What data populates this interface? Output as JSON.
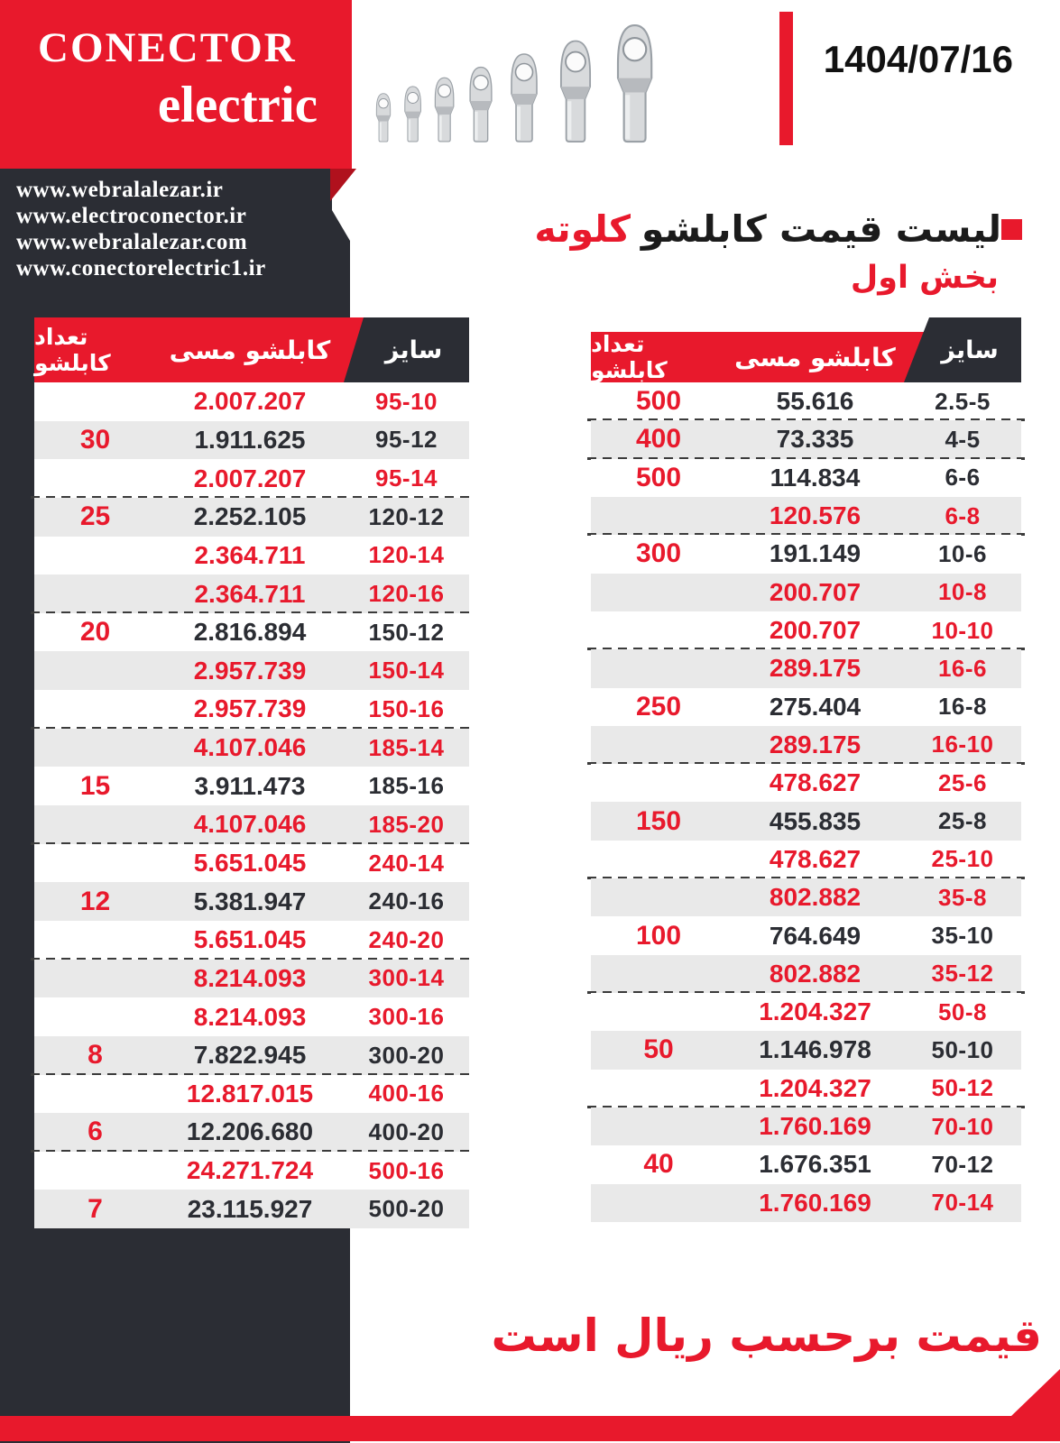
{
  "header": {
    "brand_line1": "CONECTOR",
    "brand_line2": "electric",
    "date": "1404/07/16",
    "websites": [
      "www.webralalezar.ir",
      "www.electroconector.ir",
      "www.webralalezar.com",
      "www.conectorelectric1.ir"
    ]
  },
  "title": {
    "black": "لیست قیمت کابلشو",
    "red": "کلوته",
    "subtitle": "بخش اول"
  },
  "table_headers": {
    "qty": "تعداد کابلشو",
    "price": "کابلشو مسی",
    "size": "سایز"
  },
  "tables": {
    "left": {
      "rows": [
        {
          "size": "95-10",
          "price": "2.007.207",
          "qty": "",
          "red": true,
          "dash": false
        },
        {
          "size": "95-12",
          "price": "1.911.625",
          "qty": "30",
          "red": false,
          "dash": false
        },
        {
          "size": "95-14",
          "price": "2.007.207",
          "qty": "",
          "red": true,
          "dash": true
        },
        {
          "size": "120-12",
          "price": "2.252.105",
          "qty": "25",
          "red": false,
          "dash": false
        },
        {
          "size": "120-14",
          "price": "2.364.711",
          "qty": "",
          "red": true,
          "dash": false
        },
        {
          "size": "120-16",
          "price": "2.364.711",
          "qty": "",
          "red": true,
          "dash": true
        },
        {
          "size": "150-12",
          "price": "2.816.894",
          "qty": "20",
          "red": false,
          "dash": false
        },
        {
          "size": "150-14",
          "price": "2.957.739",
          "qty": "",
          "red": true,
          "dash": false
        },
        {
          "size": "150-16",
          "price": "2.957.739",
          "qty": "",
          "red": true,
          "dash": true
        },
        {
          "size": "185-14",
          "price": "4.107.046",
          "qty": "",
          "red": true,
          "dash": false
        },
        {
          "size": "185-16",
          "price": "3.911.473",
          "qty": "15",
          "red": false,
          "dash": false
        },
        {
          "size": "185-20",
          "price": "4.107.046",
          "qty": "",
          "red": true,
          "dash": true
        },
        {
          "size": "240-14",
          "price": "5.651.045",
          "qty": "",
          "red": true,
          "dash": false
        },
        {
          "size": "240-16",
          "price": "5.381.947",
          "qty": "12",
          "red": false,
          "dash": false
        },
        {
          "size": "240-20",
          "price": "5.651.045",
          "qty": "",
          "red": true,
          "dash": true
        },
        {
          "size": "300-14",
          "price": "8.214.093",
          "qty": "",
          "red": true,
          "dash": false
        },
        {
          "size": "300-16",
          "price": "8.214.093",
          "qty": "",
          "red": true,
          "dash": false
        },
        {
          "size": "300-20",
          "price": "7.822.945",
          "qty": "8",
          "red": false,
          "dash": true
        },
        {
          "size": "400-16",
          "price": "12.817.015",
          "qty": "",
          "red": true,
          "dash": false
        },
        {
          "size": "400-20",
          "price": "12.206.680",
          "qty": "6",
          "red": false,
          "dash": true
        },
        {
          "size": "500-16",
          "price": "24.271.724",
          "qty": "",
          "red": true,
          "dash": false
        },
        {
          "size": "500-20",
          "price": "23.115.927",
          "qty": "7",
          "red": false,
          "dash": false
        }
      ]
    },
    "right": {
      "rows": [
        {
          "size": "2.5-5",
          "price": "55.616",
          "qty": "500",
          "red": false,
          "dash": true
        },
        {
          "size": "4-5",
          "price": "73.335",
          "qty": "400",
          "red": false,
          "dash": true
        },
        {
          "size": "6-6",
          "price": "114.834",
          "qty": "500",
          "red": false,
          "dash": false
        },
        {
          "size": "6-8",
          "price": "120.576",
          "qty": "",
          "red": true,
          "dash": true
        },
        {
          "size": "10-6",
          "price": "191.149",
          "qty": "300",
          "red": false,
          "dash": false
        },
        {
          "size": "10-8",
          "price": "200.707",
          "qty": "",
          "red": true,
          "dash": false
        },
        {
          "size": "10-10",
          "price": "200.707",
          "qty": "",
          "red": true,
          "dash": true
        },
        {
          "size": "16-6",
          "price": "289.175",
          "qty": "",
          "red": true,
          "dash": false
        },
        {
          "size": "16-8",
          "price": "275.404",
          "qty": "250",
          "red": false,
          "dash": false
        },
        {
          "size": "16-10",
          "price": "289.175",
          "qty": "",
          "red": true,
          "dash": true
        },
        {
          "size": "25-6",
          "price": "478.627",
          "qty": "",
          "red": true,
          "dash": false
        },
        {
          "size": "25-8",
          "price": "455.835",
          "qty": "150",
          "red": false,
          "dash": false
        },
        {
          "size": "25-10",
          "price": "478.627",
          "qty": "",
          "red": true,
          "dash": true
        },
        {
          "size": "35-8",
          "price": "802.882",
          "qty": "",
          "red": true,
          "dash": false
        },
        {
          "size": "35-10",
          "price": "764.649",
          "qty": "100",
          "red": false,
          "dash": false
        },
        {
          "size": "35-12",
          "price": "802.882",
          "qty": "",
          "red": true,
          "dash": true
        },
        {
          "size": "50-8",
          "price": "1.204.327",
          "qty": "",
          "red": true,
          "dash": false
        },
        {
          "size": "50-10",
          "price": "1.146.978",
          "qty": "50",
          "red": false,
          "dash": false
        },
        {
          "size": "50-12",
          "price": "1.204.327",
          "qty": "",
          "red": true,
          "dash": true
        },
        {
          "size": "70-10",
          "price": "1.760.169",
          "qty": "",
          "red": true,
          "dash": false
        },
        {
          "size": "70-12",
          "price": "1.676.351",
          "qty": "40",
          "red": false,
          "dash": false
        },
        {
          "size": "70-14",
          "price": "1.760.169",
          "qty": "",
          "red": true,
          "dash": false
        }
      ]
    }
  },
  "footer": {
    "note": "قیمت برحسب ریال است"
  },
  "colors": {
    "red": "#e8192c",
    "dark": "#2b2d34",
    "row_gray": "#e9e9e9",
    "fold_red": "#b0111d"
  }
}
